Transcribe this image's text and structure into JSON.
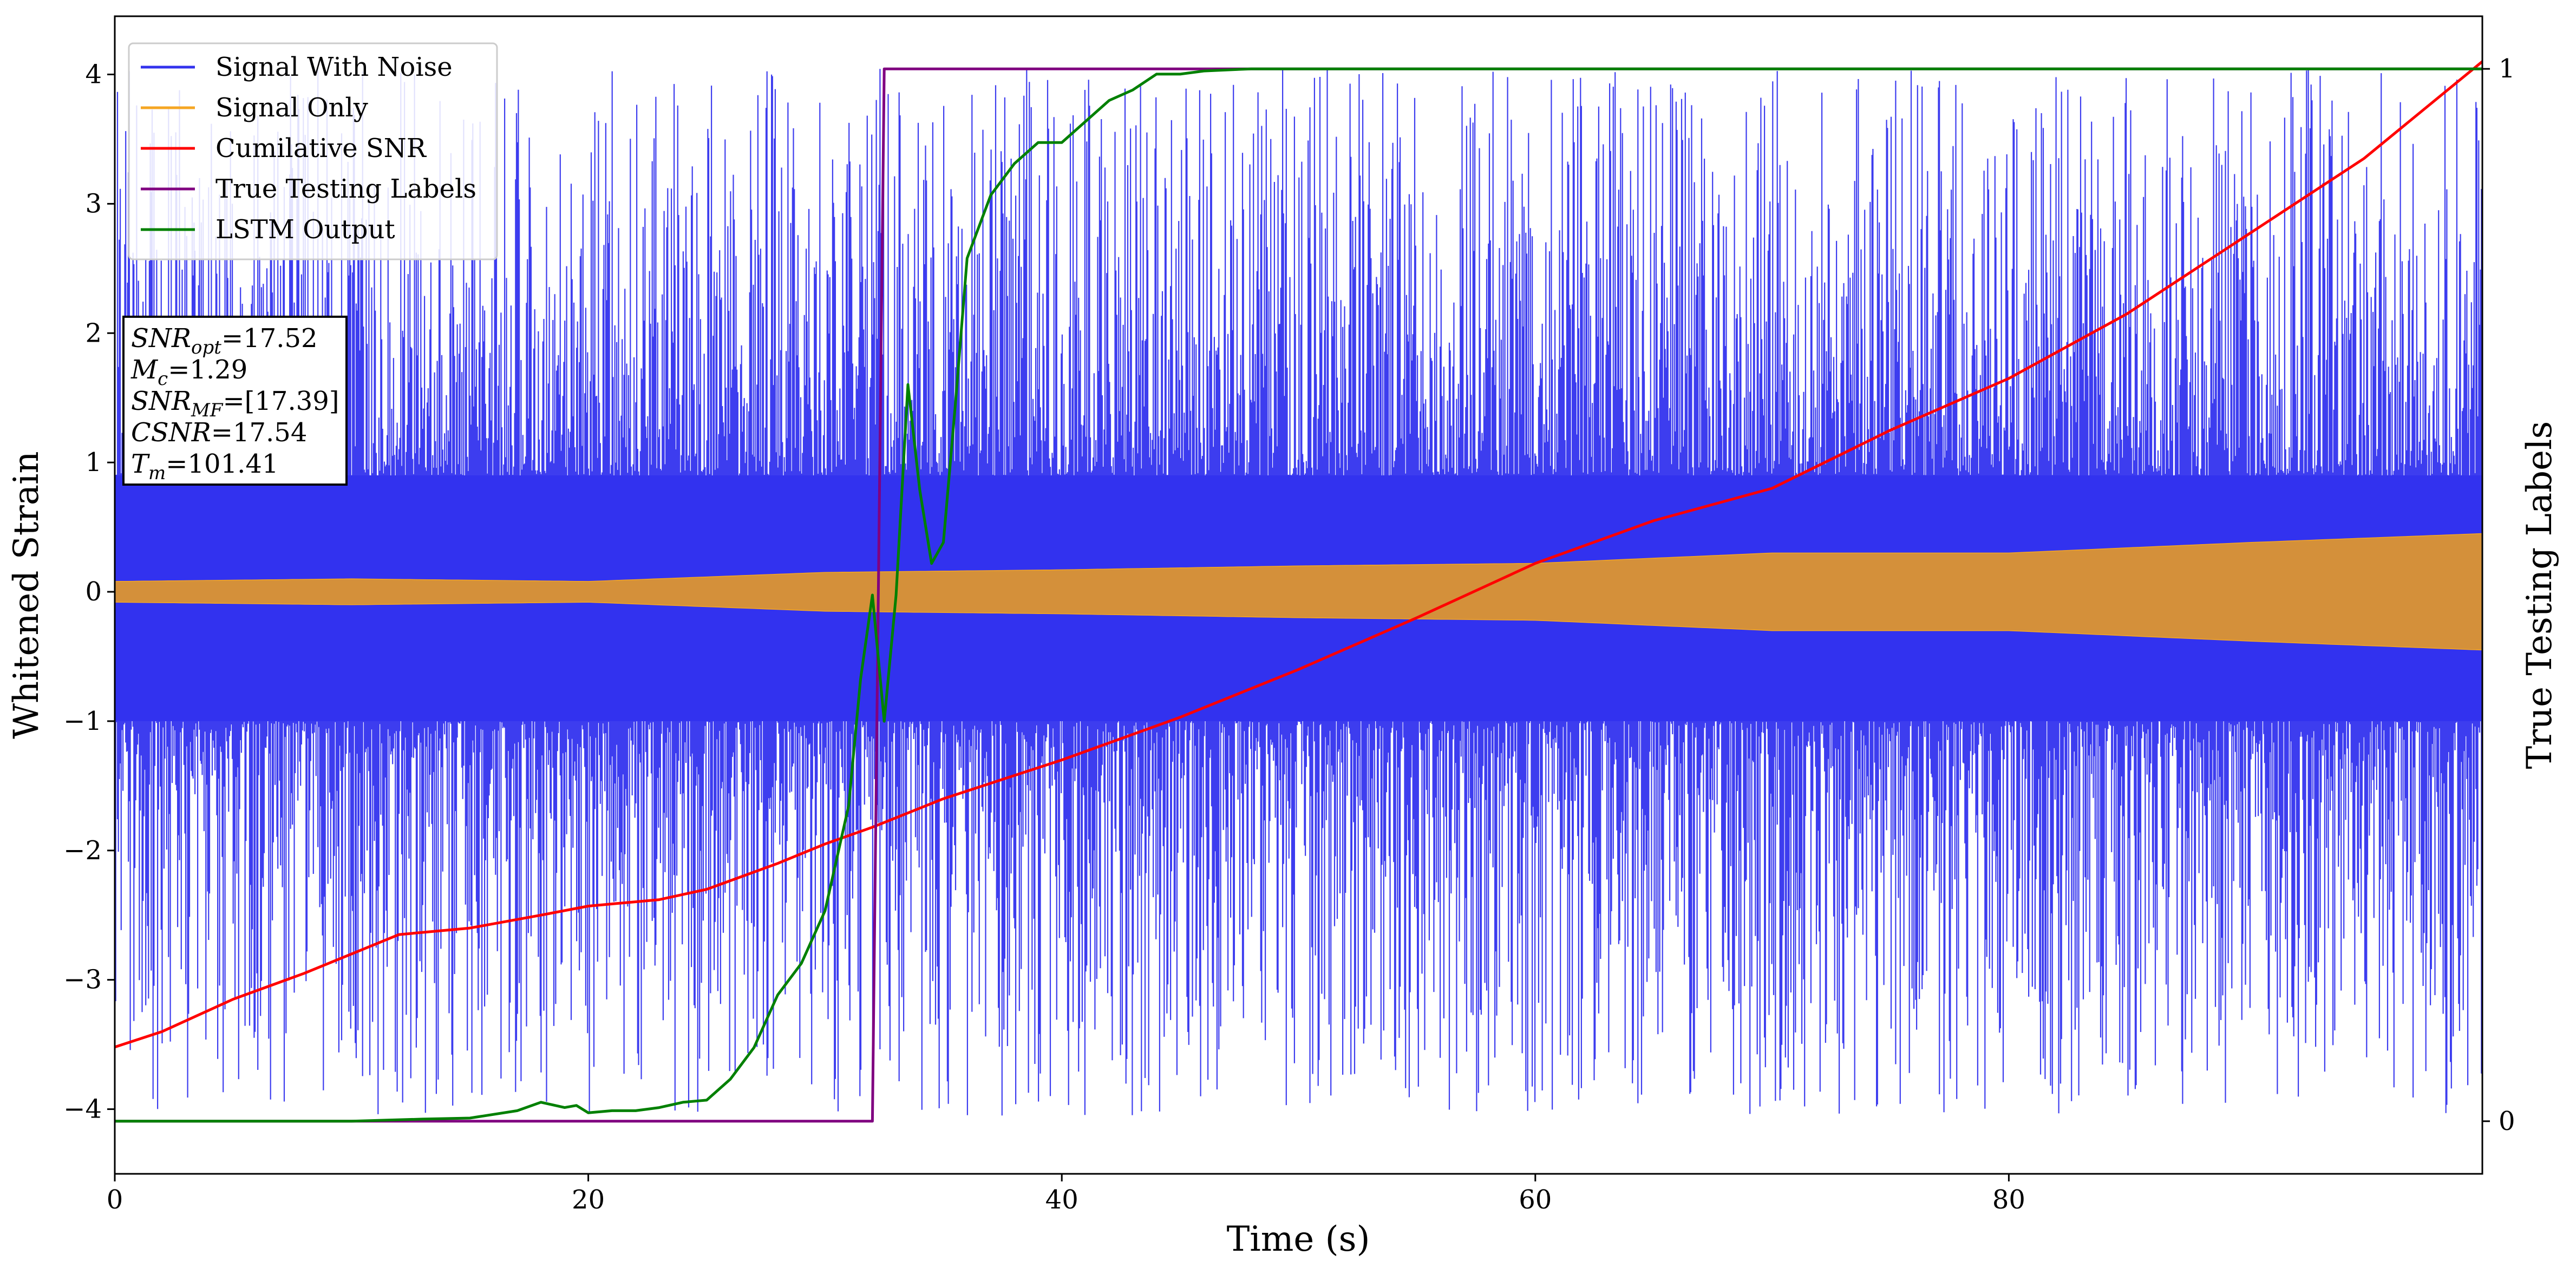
{
  "chart_data": {
    "type": "line",
    "xlabel": "Time (s)",
    "ylabel": "Whitened Strain",
    "y2label": "True Testing Labels",
    "xlim": [
      0,
      100
    ],
    "ylim": [
      -4.5,
      4.45
    ],
    "y2lim": [
      -0.05,
      1.05
    ],
    "xticks": [
      0,
      20,
      40,
      60,
      80
    ],
    "yticks": [
      -4,
      -3,
      -2,
      -1,
      0,
      1,
      2,
      3,
      4
    ],
    "y2ticks": [
      0,
      1
    ],
    "legend_position": "upper-left",
    "grid": false,
    "series": [
      {
        "name": "Signal With Noise",
        "color": "#3333ee",
        "axis": "left",
        "kind": "noise",
        "band_low": -1.0,
        "band_high": 0.9,
        "peak_max": 4.05,
        "peak_min": -4.05,
        "samples": 2600,
        "seed": 7
      },
      {
        "name": "Signal Only",
        "color": "#f5a623",
        "axis": "left",
        "kind": "chirp",
        "amp_x": [
          0,
          10,
          20,
          30,
          40,
          50,
          60,
          70,
          80,
          90,
          100
        ],
        "amp_y": [
          0.08,
          0.1,
          0.08,
          0.15,
          0.17,
          0.2,
          0.22,
          0.3,
          0.3,
          0.38,
          0.45
        ],
        "fill_color": "#d4903a"
      },
      {
        "name": "Cumilative SNR",
        "color": "#ff0000",
        "axis": "left",
        "x": [
          0,
          2,
          5,
          8,
          10,
          12,
          15,
          18,
          20,
          23,
          25,
          28,
          30,
          32,
          35,
          40,
          45,
          50,
          55,
          60,
          65,
          70,
          75,
          80,
          85,
          90,
          95,
          100
        ],
        "y": [
          -3.52,
          -3.4,
          -3.15,
          -2.95,
          -2.8,
          -2.65,
          -2.6,
          -2.5,
          -2.43,
          -2.38,
          -2.3,
          -2.1,
          -1.95,
          -1.82,
          -1.6,
          -1.3,
          -0.97,
          -0.6,
          -0.2,
          0.22,
          0.55,
          0.8,
          1.25,
          1.65,
          2.15,
          2.75,
          3.35,
          4.1
        ]
      },
      {
        "name": "True Testing Labels",
        "color": "#800080",
        "axis": "right",
        "x": [
          0,
          32,
          32.5,
          100
        ],
        "y": [
          0,
          0,
          1,
          1
        ]
      },
      {
        "name": "LSTM Output",
        "color": "#008000",
        "axis": "right",
        "x": [
          0,
          10,
          13,
          15,
          17,
          18,
          19,
          19.5,
          20,
          21,
          22,
          23,
          24,
          25,
          26,
          27,
          28,
          29,
          30,
          31,
          31.5,
          32,
          32.5,
          33,
          33.5,
          34,
          34.5,
          35,
          35.5,
          36,
          37,
          38,
          39,
          40,
          41,
          42,
          43,
          44,
          45,
          46,
          47,
          48,
          50,
          55,
          60,
          70,
          80,
          90,
          100
        ],
        "y": [
          0,
          0,
          0.002,
          0.003,
          0.01,
          0.018,
          0.013,
          0.015,
          0.008,
          0.01,
          0.01,
          0.013,
          0.018,
          0.02,
          0.04,
          0.07,
          0.12,
          0.15,
          0.2,
          0.3,
          0.42,
          0.5,
          0.38,
          0.5,
          0.7,
          0.6,
          0.53,
          0.55,
          0.68,
          0.82,
          0.88,
          0.91,
          0.93,
          0.93,
          0.95,
          0.97,
          0.98,
          0.995,
          0.995,
          0.998,
          0.999,
          1.0,
          1.0,
          1.0,
          1.0,
          1.0,
          1.0,
          1.0,
          1.0
        ]
      }
    ]
  },
  "annotation": {
    "lines": [
      {
        "main": "SNR",
        "sub": "opt",
        "rest": "=17.52"
      },
      {
        "main": "M",
        "sub": "c",
        "rest": "=1.29"
      },
      {
        "main": "SNR",
        "sub": "MF",
        "rest": "=[17.39]"
      },
      {
        "main": "CSNR",
        "sub": "",
        "rest": "=17.54"
      },
      {
        "main": "T",
        "sub": "m",
        "rest": "=101.41"
      }
    ]
  }
}
